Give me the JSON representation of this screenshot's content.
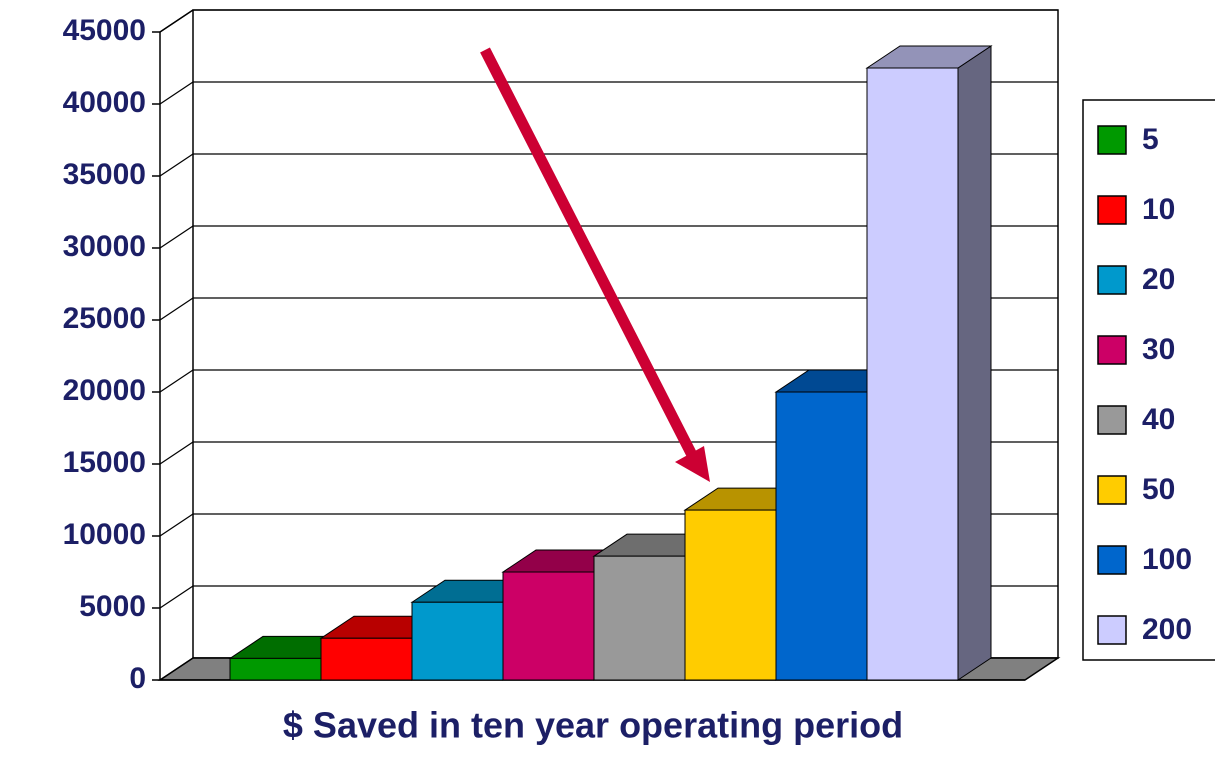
{
  "chart_data": {
    "type": "bar3d",
    "x_label": "$ Saved in ten year operating period",
    "ylim": [
      0,
      45000
    ],
    "yticks": [
      0,
      5000,
      10000,
      15000,
      20000,
      25000,
      30000,
      35000,
      40000,
      45000
    ],
    "grid": true,
    "legend": "right",
    "series": [
      {
        "name": "5",
        "color": "#009900",
        "values": [
          1500
        ]
      },
      {
        "name": "10",
        "color": "#ff0000",
        "values": [
          2900
        ]
      },
      {
        "name": "20",
        "color": "#0099cc",
        "values": [
          5400
        ]
      },
      {
        "name": "30",
        "color": "#cc0066",
        "values": [
          7500
        ]
      },
      {
        "name": "40",
        "color": "#999999",
        "values": [
          8600
        ]
      },
      {
        "name": "50",
        "color": "#ffcc00",
        "values": [
          11800
        ]
      },
      {
        "name": "100",
        "color": "#0066cc",
        "values": [
          20000
        ]
      },
      {
        "name": "200",
        "color": "#ccccff",
        "values": [
          42500
        ]
      }
    ]
  }
}
